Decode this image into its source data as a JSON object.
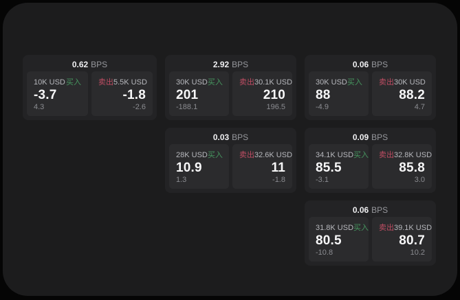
{
  "colors": {
    "page_bg": "#050505",
    "panel_bg": "#1c1c1d",
    "card_bg": "#232325",
    "cell_bg": "#2b2b2d",
    "buy_green": "#46965f",
    "sell_red": "#bf4d63",
    "value_white": "#f7f7f8",
    "label_gray": "#b7b8bd",
    "sub_gray": "#8b8c91"
  },
  "labels": {
    "bps": "BPS",
    "buy": "买入",
    "sell": "卖出"
  },
  "cards": [
    {
      "bps": "0.62",
      "col": 1,
      "row": 1,
      "buy": {
        "amount": "10K USD",
        "value": "-3.7",
        "sub": "4.3"
      },
      "sell": {
        "amount": "5.5K USD",
        "value": "-1.8",
        "sub": "-2.6"
      }
    },
    {
      "bps": "2.92",
      "col": 2,
      "row": 1,
      "buy": {
        "amount": "30K USD",
        "value": "201",
        "sub": "-188.1"
      },
      "sell": {
        "amount": "30.1K USD",
        "value": "210",
        "sub": "196.5"
      }
    },
    {
      "bps": "0.06",
      "col": 3,
      "row": 1,
      "buy": {
        "amount": "30K USD",
        "value": "88",
        "sub": "-4.9"
      },
      "sell": {
        "amount": "30K USD",
        "value": "88.2",
        "sub": "4.7"
      }
    },
    {
      "bps": "0.03",
      "col": 2,
      "row": 2,
      "buy": {
        "amount": "28K USD",
        "value": "10.9",
        "sub": "1.3"
      },
      "sell": {
        "amount": "32.6K USD",
        "value": "11",
        "sub": "-1.8"
      }
    },
    {
      "bps": "0.09",
      "col": 3,
      "row": 2,
      "buy": {
        "amount": "34.1K USD",
        "value": "85.5",
        "sub": "-3.1"
      },
      "sell": {
        "amount": "32.8K USD",
        "value": "85.8",
        "sub": "3.0"
      }
    },
    {
      "bps": "0.06",
      "col": 3,
      "row": 3,
      "buy": {
        "amount": "31.8K USD",
        "value": "80.5",
        "sub": "-10.8"
      },
      "sell": {
        "amount": "39.1K USD",
        "value": "80.7",
        "sub": "10.2"
      }
    }
  ]
}
